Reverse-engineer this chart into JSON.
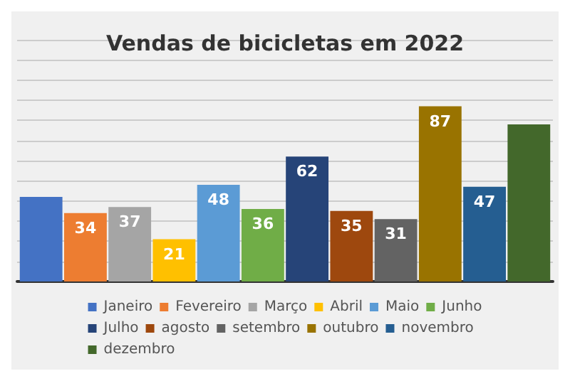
{
  "chart_data": {
    "type": "bar",
    "title": "Vendas de bicicletas em 2022",
    "categories": [
      null
    ],
    "series": [
      {
        "name": "Janeiro",
        "color": "#4472c4",
        "values": [
          42
        ],
        "value_labels": [
          null
        ]
      },
      {
        "name": "Fevereiro",
        "color": "#ed7d31",
        "values": [
          34
        ],
        "value_labels": [
          "34"
        ]
      },
      {
        "name": "Março",
        "color": "#a5a5a5",
        "values": [
          37
        ],
        "value_labels": [
          "37"
        ]
      },
      {
        "name": "Abril",
        "color": "#ffc000",
        "values": [
          21
        ],
        "value_labels": [
          "21"
        ]
      },
      {
        "name": "Maio",
        "color": "#5b9bd5",
        "values": [
          48
        ],
        "value_labels": [
          "48"
        ]
      },
      {
        "name": "Junho",
        "color": "#70ad47",
        "values": [
          36
        ],
        "value_labels": [
          "36"
        ]
      },
      {
        "name": "Julho",
        "color": "#264478",
        "values": [
          62
        ],
        "value_labels": [
          "62"
        ]
      },
      {
        "name": "agosto",
        "color": "#9e480e",
        "values": [
          35
        ],
        "value_labels": [
          "35"
        ]
      },
      {
        "name": "setembro",
        "color": "#636363",
        "values": [
          31
        ],
        "value_labels": [
          "31"
        ]
      },
      {
        "name": "outubro",
        "color": "#997300",
        "values": [
          87
        ],
        "value_labels": [
          "87"
        ]
      },
      {
        "name": "novembro",
        "color": "#255e91",
        "values": [
          47
        ],
        "value_labels": [
          "47"
        ]
      },
      {
        "name": "dezembro",
        "color": "#43682b",
        "values": [
          78
        ],
        "value_labels": [
          null
        ]
      }
    ],
    "ylim": [
      0,
      120
    ],
    "yticks": [
      0,
      10,
      20,
      30,
      40,
      50,
      60,
      70,
      80,
      90,
      100,
      110,
      120
    ],
    "grid": "y",
    "tick_labels": false,
    "legend": "bottom"
  }
}
